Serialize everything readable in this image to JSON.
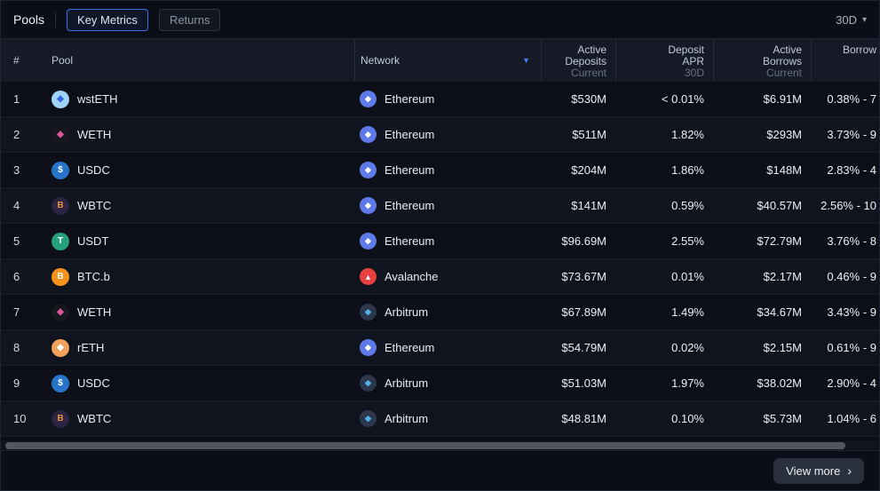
{
  "toolbar": {
    "title": "Pools",
    "tabs": [
      {
        "label": "Key Metrics",
        "active": true
      },
      {
        "label": "Returns",
        "active": false
      }
    ],
    "period": "30D",
    "period_caret": "▾"
  },
  "header": {
    "rank": "#",
    "pool": "Pool",
    "network": "Network",
    "sort_caret": "▼",
    "deposits": {
      "l1": "Active",
      "l2": "Deposits",
      "sub": "Current"
    },
    "apr": {
      "l1": "Deposit",
      "l2": "APR",
      "sub": "30D"
    },
    "borrows": {
      "l1": "Active",
      "l2": "Borrows",
      "sub": "Current"
    },
    "borrow_apr": {
      "l1": "Borrow"
    }
  },
  "icons": {
    "wsteth": {
      "bg": "#9fd3f7",
      "fg": "#3568dc",
      "glyph": "◆"
    },
    "weth": {
      "bg": "#17181d",
      "fg": "#e0569a",
      "glyph": "◆"
    },
    "usdc": {
      "bg": "#2775ca",
      "fg": "#ffffff",
      "glyph": "$"
    },
    "wbtc": {
      "bg": "#2b2440",
      "fg": "#f09242",
      "glyph": "B"
    },
    "usdt": {
      "bg": "#26a17b",
      "fg": "#ffffff",
      "glyph": "T"
    },
    "btcb": {
      "bg": "#f7931a",
      "fg": "#ffffff",
      "glyph": "B"
    },
    "reth": {
      "bg": "#f1a15b",
      "fg": "#ffffff",
      "glyph": "◆"
    },
    "ethereum": {
      "bg": "#6079e9",
      "fg": "#ffffff",
      "glyph": "◆"
    },
    "avalanche": {
      "bg": "#e84142",
      "fg": "#ffffff",
      "glyph": "▲"
    },
    "arbitrum": {
      "bg": "#2d374b",
      "fg": "#53b4f0",
      "glyph": "◆"
    }
  },
  "rows": [
    {
      "rank": "1",
      "pool": "wstETH",
      "token_icon": "wsteth",
      "network": "Ethereum",
      "network_icon": "ethereum",
      "deposits": "$530M",
      "apr": "< 0.01%",
      "borrows": "$6.91M",
      "borrow_apr": "0.38% - 7"
    },
    {
      "rank": "2",
      "pool": "WETH",
      "token_icon": "weth",
      "network": "Ethereum",
      "network_icon": "ethereum",
      "deposits": "$511M",
      "apr": "1.82%",
      "borrows": "$293M",
      "borrow_apr": "3.73% - 9"
    },
    {
      "rank": "3",
      "pool": "USDC",
      "token_icon": "usdc",
      "network": "Ethereum",
      "network_icon": "ethereum",
      "deposits": "$204M",
      "apr": "1.86%",
      "borrows": "$148M",
      "borrow_apr": "2.83% - 4"
    },
    {
      "rank": "4",
      "pool": "WBTC",
      "token_icon": "wbtc",
      "network": "Ethereum",
      "network_icon": "ethereum",
      "deposits": "$141M",
      "apr": "0.59%",
      "borrows": "$40.57M",
      "borrow_apr": "2.56% - 10"
    },
    {
      "rank": "5",
      "pool": "USDT",
      "token_icon": "usdt",
      "network": "Ethereum",
      "network_icon": "ethereum",
      "deposits": "$96.69M",
      "apr": "2.55%",
      "borrows": "$72.79M",
      "borrow_apr": "3.76% - 8"
    },
    {
      "rank": "6",
      "pool": "BTC.b",
      "token_icon": "btcb",
      "network": "Avalanche",
      "network_icon": "avalanche",
      "deposits": "$73.67M",
      "apr": "0.01%",
      "borrows": "$2.17M",
      "borrow_apr": "0.46% - 9"
    },
    {
      "rank": "7",
      "pool": "WETH",
      "token_icon": "weth",
      "network": "Arbitrum",
      "network_icon": "arbitrum",
      "deposits": "$67.89M",
      "apr": "1.49%",
      "borrows": "$34.67M",
      "borrow_apr": "3.43% - 9"
    },
    {
      "rank": "8",
      "pool": "rETH",
      "token_icon": "reth",
      "network": "Ethereum",
      "network_icon": "ethereum",
      "deposits": "$54.79M",
      "apr": "0.02%",
      "borrows": "$2.15M",
      "borrow_apr": "0.61% - 9"
    },
    {
      "rank": "9",
      "pool": "USDC",
      "token_icon": "usdc",
      "network": "Arbitrum",
      "network_icon": "arbitrum",
      "deposits": "$51.03M",
      "apr": "1.97%",
      "borrows": "$38.02M",
      "borrow_apr": "2.90% - 4"
    },
    {
      "rank": "10",
      "pool": "WBTC",
      "token_icon": "wbtc",
      "network": "Arbitrum",
      "network_icon": "arbitrum",
      "deposits": "$48.81M",
      "apr": "0.10%",
      "borrows": "$5.73M",
      "borrow_apr": "1.04% - 6"
    }
  ],
  "footer": {
    "view_more": "View more",
    "chevron": "›"
  }
}
